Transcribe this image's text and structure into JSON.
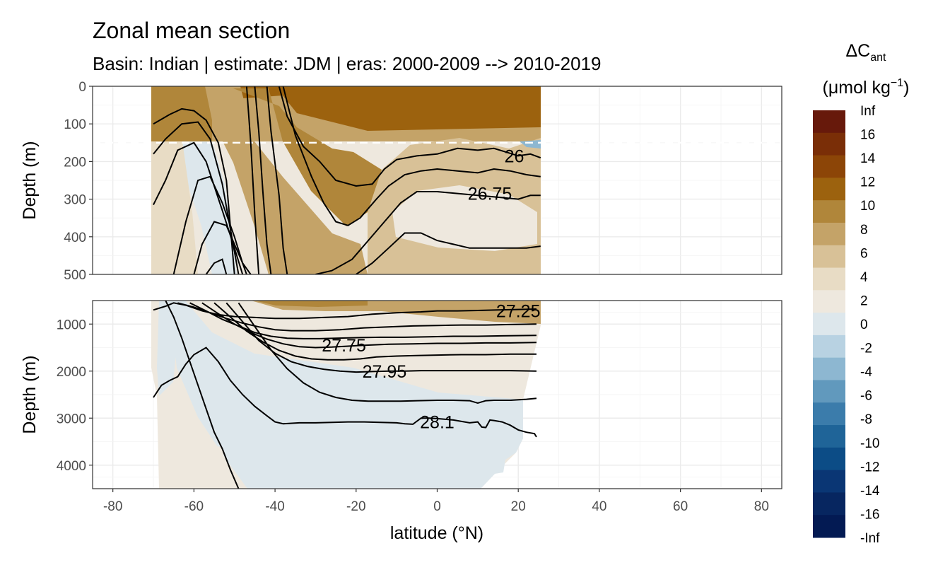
{
  "chart_data": {
    "type": "heatmap",
    "title": "Zonal mean section",
    "subtitle": "Basin: Indian | estimate: JDM  | eras: 2000-2009 --> 2010-2019",
    "xlabel": "latitude (°N)",
    "ylabel_top": "Depth (m)",
    "ylabel_bottom": "Depth (m)",
    "xlim": [
      -85,
      85
    ],
    "x_ticks": [
      -80,
      -60,
      -40,
      -20,
      0,
      20,
      40,
      60,
      80
    ],
    "x_tick_labels": [
      "-80",
      "-60",
      "-40",
      "-20",
      "0",
      "20",
      "40",
      "60",
      "80"
    ],
    "panels": [
      {
        "name": "upper",
        "ylim": [
          500,
          0
        ],
        "y_ticks": [
          0,
          100,
          200,
          300,
          400,
          500
        ],
        "y_tick_labels": [
          "0",
          "100",
          "200",
          "300",
          "400",
          "500"
        ],
        "mixed_layer_reference_depth": 150
      },
      {
        "name": "lower",
        "ylim": [
          4500,
          500
        ],
        "y_ticks": [
          1000,
          2000,
          3000,
          4000
        ],
        "y_tick_labels": [
          "1000",
          "2000",
          "3000",
          "4000"
        ]
      }
    ],
    "data_extent": {
      "lat_min": -70,
      "lat_max": 25
    },
    "grid": true,
    "legend": {
      "position": "right",
      "title_main": "ΔC",
      "title_sub": "ant",
      "title_unit_pre": "(μmol kg",
      "title_unit_sup": "−1",
      "title_unit_post": ")",
      "breaks": [
        "Inf",
        "16",
        "14",
        "12",
        "10",
        "8",
        "6",
        "4",
        "2",
        "0",
        "-2",
        "-4",
        "-6",
        "-8",
        "-10",
        "-12",
        "-14",
        "-16",
        "-Inf"
      ],
      "colors": [
        "#67190b",
        "#7a2e07",
        "#8c4507",
        "#9c620e",
        "#b0863a",
        "#c4a368",
        "#d8c197",
        "#e8dcc5",
        "#eee8de",
        "#dde7ec",
        "#b8d2e2",
        "#8db7d1",
        "#6199bd",
        "#3b7cab",
        "#1f6498",
        "#0c4c86",
        "#0a3674",
        "#072660",
        "#031a53"
      ]
    },
    "isopycnal_labels": [
      {
        "text": "26",
        "lat": 19,
        "depth": 185
      },
      {
        "text": "26.75",
        "lat": 13,
        "depth": 285
      },
      {
        "text": "27.25",
        "lat": 20,
        "depth": 720
      },
      {
        "text": "27.75",
        "lat": -23,
        "depth": 1450
      },
      {
        "text": "27.95",
        "lat": -13,
        "depth": 2000
      },
      {
        "text": "28.1",
        "lat": 0,
        "depth": 3080
      }
    ],
    "isopycnals_upper": [
      {
        "lat": [
          -70,
          -66,
          -63,
          -60,
          -57,
          -54,
          -52,
          -50
        ],
        "depth": [
          100,
          75,
          60,
          65,
          90,
          150,
          250,
          500
        ]
      },
      {
        "lat": [
          -70,
          -67,
          -63,
          -59,
          -56,
          -53,
          -51,
          -49
        ],
        "depth": [
          180,
          140,
          100,
          95,
          140,
          260,
          380,
          500
        ]
      },
      {
        "lat": [
          -70,
          -67,
          -64,
          -60,
          -57,
          -53,
          -50,
          -48
        ],
        "depth": [
          315,
          250,
          170,
          150,
          200,
          330,
          430,
          500
        ]
      },
      {
        "lat": [
          -65,
          -62,
          -59,
          -56,
          -53,
          -50,
          -48,
          -47
        ],
        "depth": [
          500,
          360,
          250,
          240,
          310,
          400,
          470,
          500
        ]
      },
      {
        "lat": [
          -60,
          -58,
          -55,
          -52,
          -50,
          -48,
          -46
        ],
        "depth": [
          500,
          420,
          360,
          370,
          420,
          470,
          500
        ]
      },
      {
        "lat": [
          -57,
          -55,
          -53,
          -52
        ],
        "depth": [
          500,
          470,
          460,
          500
        ]
      },
      {
        "lat": [
          -47,
          -46,
          -45,
          -44
        ],
        "depth": [
          0,
          150,
          340,
          500
        ]
      },
      {
        "lat": [
          -45,
          -44,
          -43,
          -42,
          -41
        ],
        "depth": [
          0,
          120,
          280,
          420,
          500
        ]
      },
      {
        "lat": [
          -42,
          -41,
          -39,
          -38,
          -37
        ],
        "depth": [
          0,
          120,
          290,
          430,
          500
        ]
      },
      {
        "lat": [
          -39,
          -37,
          -33,
          -29,
          -25,
          -20,
          -16,
          -13,
          -10,
          -5,
          0,
          5,
          10,
          14,
          17,
          20,
          23,
          25.5
        ],
        "depth": [
          0,
          80,
          160,
          200,
          250,
          265,
          260,
          220,
          195,
          185,
          180,
          165,
          170,
          165,
          175,
          185,
          180,
          190
        ]
      },
      {
        "lat": [
          -38,
          -35,
          -31,
          -28,
          -25,
          -22,
          -19,
          -15,
          -12,
          -8,
          -4,
          0,
          5,
          10,
          14,
          18,
          22,
          25.5
        ],
        "depth": [
          0,
          130,
          240,
          310,
          360,
          370,
          350,
          300,
          265,
          235,
          225,
          220,
          225,
          230,
          220,
          225,
          235,
          240
        ]
      },
      {
        "lat": [
          -30,
          -26,
          -21,
          -17,
          -13,
          -9,
          -5,
          0,
          5,
          10,
          15,
          20,
          23,
          25.5
        ],
        "depth": [
          500,
          490,
          460,
          410,
          360,
          310,
          280,
          280,
          285,
          290,
          295,
          300,
          290,
          290
        ]
      },
      {
        "lat": [
          -20,
          -16,
          -12,
          -8,
          -4,
          0,
          4,
          8,
          13,
          18,
          22,
          25.5
        ],
        "depth": [
          500,
          470,
          430,
          390,
          390,
          410,
          420,
          430,
          430,
          430,
          430,
          425
        ]
      }
    ],
    "isopycnals_lower": [
      {
        "lat": [
          -70,
          -67,
          -65,
          -62,
          -58,
          -54,
          -50,
          -45,
          -40,
          -34,
          -28,
          -22,
          -16,
          -10,
          -4,
          0,
          5,
          10,
          15,
          20,
          24.5
        ],
        "depth": [
          700,
          620,
          550,
          600,
          720,
          800,
          840,
          860,
          880,
          880,
          860,
          840,
          790,
          760,
          740,
          720,
          720,
          710,
          700,
          690,
          680
        ]
      },
      {
        "lat": [
          -64,
          -60,
          -56,
          -52,
          -48,
          -44,
          -40,
          -36,
          -30,
          -24,
          -18,
          -12,
          -6,
          0,
          6,
          12,
          18,
          24.5
        ],
        "depth": [
          550,
          640,
          760,
          880,
          980,
          1060,
          1120,
          1140,
          1140,
          1120,
          1080,
          1060,
          1040,
          1030,
          1020,
          1020,
          1010,
          1000
        ]
      },
      {
        "lat": [
          -61,
          -57,
          -53,
          -49,
          -45,
          -41,
          -37,
          -33,
          -29,
          -25,
          -20,
          -14,
          -8,
          -2,
          4,
          10,
          16,
          24.5
        ],
        "depth": [
          550,
          720,
          900,
          1040,
          1180,
          1260,
          1300,
          1310,
          1310,
          1300,
          1290,
          1280,
          1280,
          1270,
          1260,
          1260,
          1250,
          1240
        ]
      },
      {
        "lat": [
          -58,
          -54,
          -50,
          -46,
          -42,
          -38,
          -34,
          -30,
          -26,
          -22,
          -18,
          -12,
          -6,
          0,
          6,
          12,
          18,
          24.5
        ],
        "depth": [
          550,
          780,
          1000,
          1180,
          1320,
          1420,
          1480,
          1500,
          1490,
          1470,
          1450,
          1430,
          1420,
          1410,
          1410,
          1400,
          1400,
          1390
        ]
      },
      {
        "lat": [
          -55,
          -51,
          -47,
          -43,
          -39,
          -35,
          -31,
          -27,
          -23,
          -19,
          -15,
          -10,
          -5,
          0,
          6,
          12,
          18,
          24.5
        ],
        "depth": [
          550,
          850,
          1150,
          1380,
          1560,
          1680,
          1740,
          1760,
          1760,
          1740,
          1700,
          1680,
          1670,
          1660,
          1650,
          1650,
          1640,
          1640
        ]
      },
      {
        "lat": [
          -52,
          -48,
          -44,
          -40,
          -36,
          -32,
          -28,
          -24,
          -20,
          -16,
          -12,
          -8,
          -4,
          0,
          6,
          12,
          18,
          24.5
        ],
        "depth": [
          550,
          950,
          1350,
          1620,
          1800,
          1900,
          1960,
          2000,
          2020,
          2010,
          2000,
          2000,
          1990,
          1990,
          1990,
          1990,
          1990,
          2000
        ]
      },
      {
        "lat": [
          -49,
          -45,
          -41,
          -37,
          -33,
          -29,
          -25,
          -21,
          -17,
          -13,
          -9,
          -5,
          0,
          4,
          8,
          10,
          12,
          14,
          18,
          22,
          24.5
        ],
        "depth": [
          550,
          1050,
          1550,
          1950,
          2250,
          2450,
          2560,
          2620,
          2640,
          2640,
          2640,
          2630,
          2620,
          2620,
          2630,
          2680,
          2630,
          2620,
          2620,
          2600,
          2580
        ]
      },
      {
        "lat": [
          -70,
          -68,
          -66,
          -64,
          -62,
          -60,
          -57,
          -54,
          -51,
          -48,
          -45,
          -42,
          -40,
          -38,
          -34,
          -30,
          -26,
          -22,
          -18,
          -14,
          -10,
          -8,
          -6,
          -4,
          -2,
          0,
          4,
          8,
          10,
          11,
          12,
          13,
          14,
          16,
          18,
          20,
          22,
          24,
          24.5
        ],
        "depth": [
          2560,
          2300,
          2200,
          2120,
          1850,
          1650,
          1500,
          1800,
          2200,
          2500,
          2750,
          2950,
          3080,
          3120,
          3100,
          3100,
          3090,
          3080,
          3080,
          3090,
          3100,
          3120,
          3130,
          3000,
          3000,
          3010,
          3040,
          3100,
          3080,
          3190,
          3200,
          3040,
          3050,
          3080,
          3150,
          3250,
          3300,
          3330,
          3400
        ]
      },
      {
        "lat": [
          -67,
          -65,
          -63,
          -61,
          -59,
          -57,
          -55,
          -53,
          -51,
          -49
        ],
        "depth": [
          500,
          850,
          1300,
          1800,
          2300,
          2800,
          3300,
          3650,
          4100,
          4500
        ]
      }
    ]
  }
}
